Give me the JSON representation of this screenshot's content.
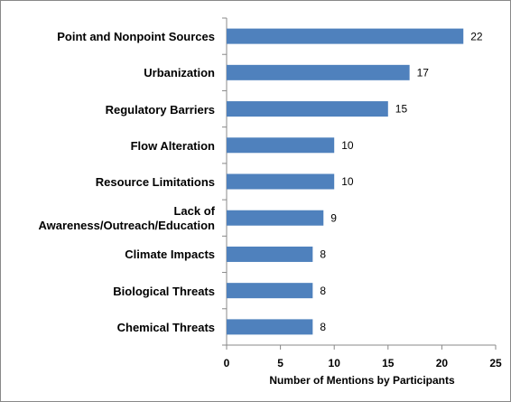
{
  "chart_data": {
    "type": "bar",
    "orientation": "horizontal",
    "categories": [
      "Point and Nonpoint Sources",
      "Urbanization",
      "Regulatory Barriers",
      "Flow Alteration",
      "Resource Limitations",
      "Lack of Awareness/Outreach/Education",
      "Climate Impacts",
      "Biological Threats",
      "Chemical Threats"
    ],
    "values": [
      22,
      17,
      15,
      10,
      10,
      9,
      8,
      8,
      8
    ],
    "color": "#4f81bd",
    "x_label": "Number of Mentions by Participants",
    "xlim": [
      0,
      25
    ],
    "xticks": [
      0,
      5,
      10,
      15,
      20,
      25
    ],
    "grid": false
  }
}
